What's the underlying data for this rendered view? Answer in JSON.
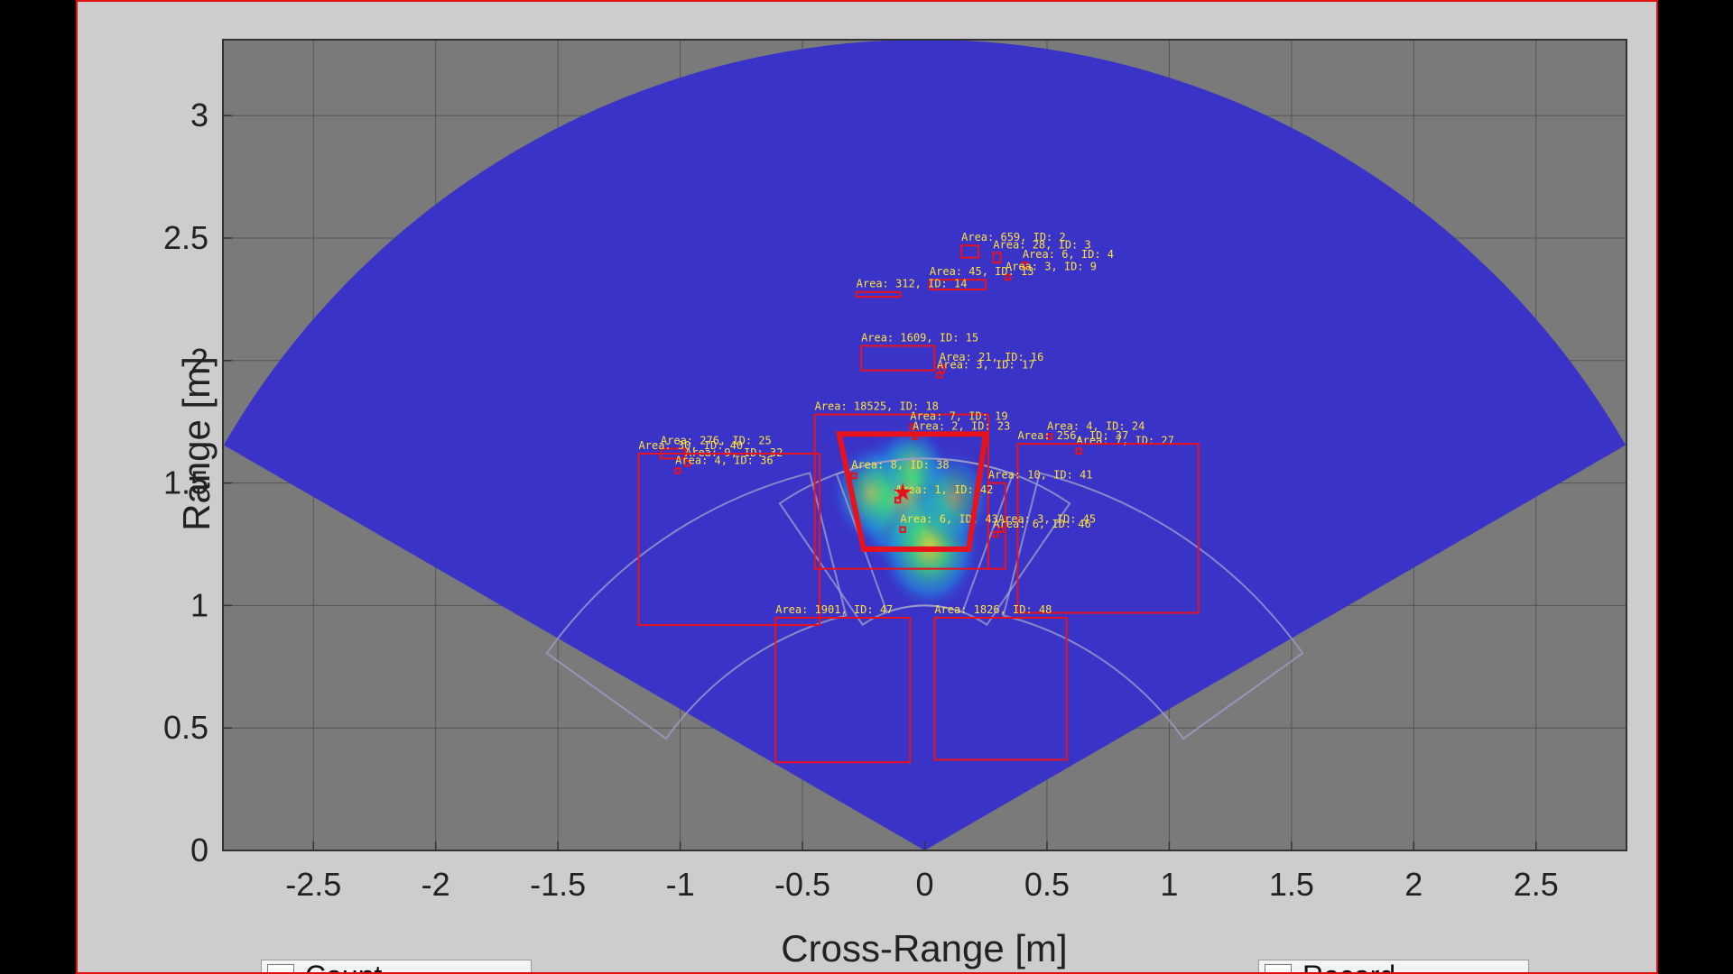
{
  "chart_data": {
    "type": "heatmap",
    "title": "",
    "xlabel": "Cross-Range [m]",
    "ylabel": "Range [m]",
    "xlim": [
      -2.87,
      2.87
    ],
    "ylim": [
      0,
      3.31
    ],
    "xticks": [
      -2.5,
      -2,
      -1.5,
      -1,
      -0.5,
      0,
      0.5,
      1,
      1.5,
      2,
      2.5
    ],
    "xtick_labels": [
      "-2.5",
      "-2",
      "-1.5",
      "-1",
      "-0.5",
      "0",
      "0.5",
      "1",
      "1.5",
      "2",
      "2.5"
    ],
    "yticks": [
      0,
      0.5,
      1,
      1.5,
      2,
      2.5,
      3
    ],
    "ytick_labels": [
      "0",
      "0.5",
      "1",
      "1.5",
      "2",
      "2.5",
      "3"
    ],
    "grid": true,
    "sector": {
      "max_range": 3.31,
      "half_angle_deg": 60
    },
    "colors": {
      "background": "#7a7a7a",
      "sector": "#3a33c8",
      "box": "#e8121c",
      "label": "#ffe23a",
      "grid": "#555555"
    },
    "hotspots": [
      {
        "x": -0.08,
        "y": 1.43,
        "intensity": 1.0
      },
      {
        "x": 0.02,
        "y": 1.24,
        "intensity": 0.85
      },
      {
        "x": -0.22,
        "y": 1.46,
        "intensity": 0.55
      },
      {
        "x": 0.12,
        "y": 1.44,
        "intensity": 0.5
      },
      {
        "x": -0.05,
        "y": 1.58,
        "intensity": 0.35
      }
    ],
    "peak_marker": {
      "x": -0.09,
      "y": 1.46
    },
    "boxes": [
      {
        "label": "Area: 659, ID: 2",
        "x0": 0.15,
        "x1": 0.22,
        "y0": 2.42,
        "y1": 2.47
      },
      {
        "label": "Area: 28, ID: 3",
        "x0": 0.28,
        "x1": 0.31,
        "y0": 2.4,
        "y1": 2.44
      },
      {
        "label": "Area: 6, ID: 4",
        "x0": 0.4,
        "x1": 0.42,
        "y0": 2.38,
        "y1": 2.4
      },
      {
        "label": "Area: 3, ID: 9",
        "x0": 0.33,
        "x1": 0.35,
        "y0": 2.33,
        "y1": 2.35
      },
      {
        "label": "Area: 45, ID: 13",
        "x0": 0.02,
        "x1": 0.25,
        "y0": 2.29,
        "y1": 2.33
      },
      {
        "label": "Area: 312, ID: 14",
        "x0": -0.28,
        "x1": -0.1,
        "y0": 2.26,
        "y1": 2.28
      },
      {
        "label": "Area: 1609, ID: 15",
        "x0": -0.26,
        "x1": 0.04,
        "y0": 1.96,
        "y1": 2.06
      },
      {
        "label": "Area: 21, ID: 16",
        "x0": 0.06,
        "x1": 0.08,
        "y0": 1.95,
        "y1": 1.98
      },
      {
        "label": "Area: 3, ID: 17",
        "x0": 0.05,
        "x1": 0.07,
        "y0": 1.93,
        "y1": 1.95
      },
      {
        "label": "Area: 18525, ID: 18",
        "x0": -0.45,
        "x1": 0.26,
        "y0": 1.15,
        "y1": 1.78
      },
      {
        "label": "Area: 7, ID: 19",
        "x0": -0.06,
        "x1": -0.04,
        "y0": 1.72,
        "y1": 1.74
      },
      {
        "label": "Area: 2, ID: 23",
        "x0": -0.05,
        "x1": -0.03,
        "y0": 1.68,
        "y1": 1.7
      },
      {
        "label": "Area: 4, ID: 24",
        "x0": 0.5,
        "x1": 0.52,
        "y0": 1.68,
        "y1": 1.7
      },
      {
        "label": "Area: 276, ID: 25",
        "x0": -1.08,
        "x1": -0.98,
        "y0": 1.6,
        "y1": 1.64
      },
      {
        "label": "Area: 7, ID: 27",
        "x0": 0.62,
        "x1": 0.64,
        "y0": 1.62,
        "y1": 1.64
      },
      {
        "label": "Area: 9, ID: 32",
        "x0": -0.98,
        "x1": -0.96,
        "y0": 1.57,
        "y1": 1.59
      },
      {
        "label": "Area: 4, ID: 36",
        "x0": -1.02,
        "x1": -1.0,
        "y0": 1.54,
        "y1": 1.56
      },
      {
        "label": "Area: 256, ID: 37",
        "x0": 0.38,
        "x1": 1.12,
        "y0": 0.97,
        "y1": 1.66
      },
      {
        "label": "Area: 8, ID: 38",
        "x0": -0.3,
        "x1": -0.28,
        "y0": 1.52,
        "y1": 1.54
      },
      {
        "label": "Area: 30, ID: 40",
        "x0": -1.17,
        "x1": -0.43,
        "y0": 0.92,
        "y1": 1.62
      },
      {
        "label": "Area: 10, ID: 41",
        "x0": 0.26,
        "x1": 0.33,
        "y0": 1.15,
        "y1": 1.5
      },
      {
        "label": "Area: 1, ID: 42",
        "x0": -0.12,
        "x1": -0.1,
        "y0": 1.42,
        "y1": 1.44
      },
      {
        "label": "Area: 6, ID: 43",
        "x0": -0.1,
        "x1": -0.08,
        "y0": 1.3,
        "y1": 1.32
      },
      {
        "label": "Area: 3, ID: 45",
        "x0": 0.3,
        "x1": 0.32,
        "y0": 1.3,
        "y1": 1.32
      },
      {
        "label": "Area: 6, ID: 46",
        "x0": 0.28,
        "x1": 0.3,
        "y0": 1.28,
        "y1": 1.3
      },
      {
        "label": "Area: 1901, ID: 47",
        "x0": -0.61,
        "x1": -0.06,
        "y0": 0.36,
        "y1": 0.95
      },
      {
        "label": "Area: 1826, ID: 48",
        "x0": 0.04,
        "x1": 0.58,
        "y0": 0.37,
        "y1": 0.95
      }
    ]
  },
  "controls": [
    {
      "name": "count-checkbox",
      "label": "Count"
    },
    {
      "name": "record-checkbox",
      "label": "Record"
    }
  ]
}
